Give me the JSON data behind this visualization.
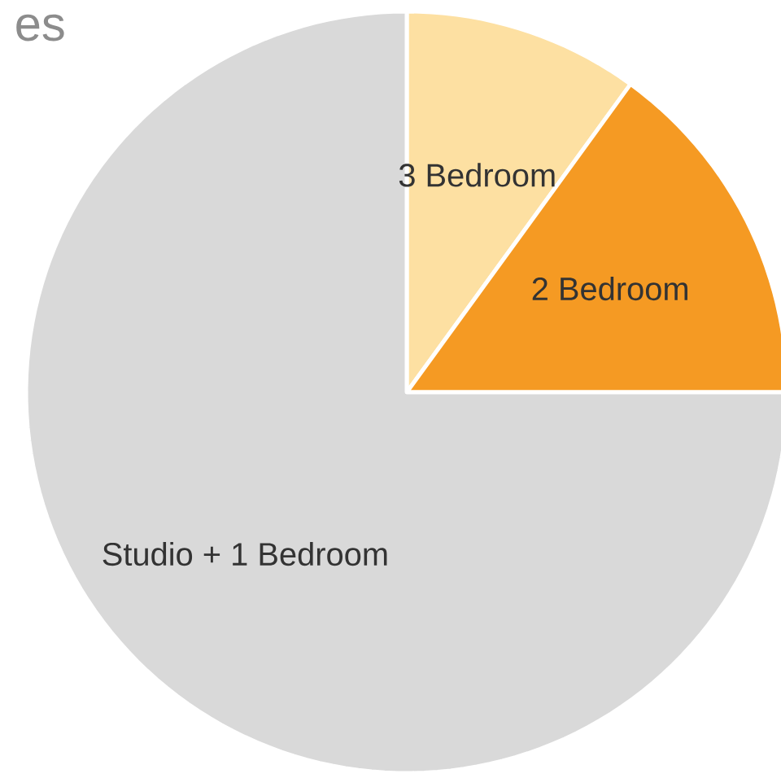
{
  "chart_data": {
    "type": "pie",
    "title": "es",
    "categories": [
      "3 Bedroom",
      "2 Bedroom",
      "Studio + 1 Bedroom"
    ],
    "values": [
      10,
      15,
      75
    ],
    "colors": [
      "#fde0a2",
      "#f59a23",
      "#d9d9d9"
    ]
  }
}
